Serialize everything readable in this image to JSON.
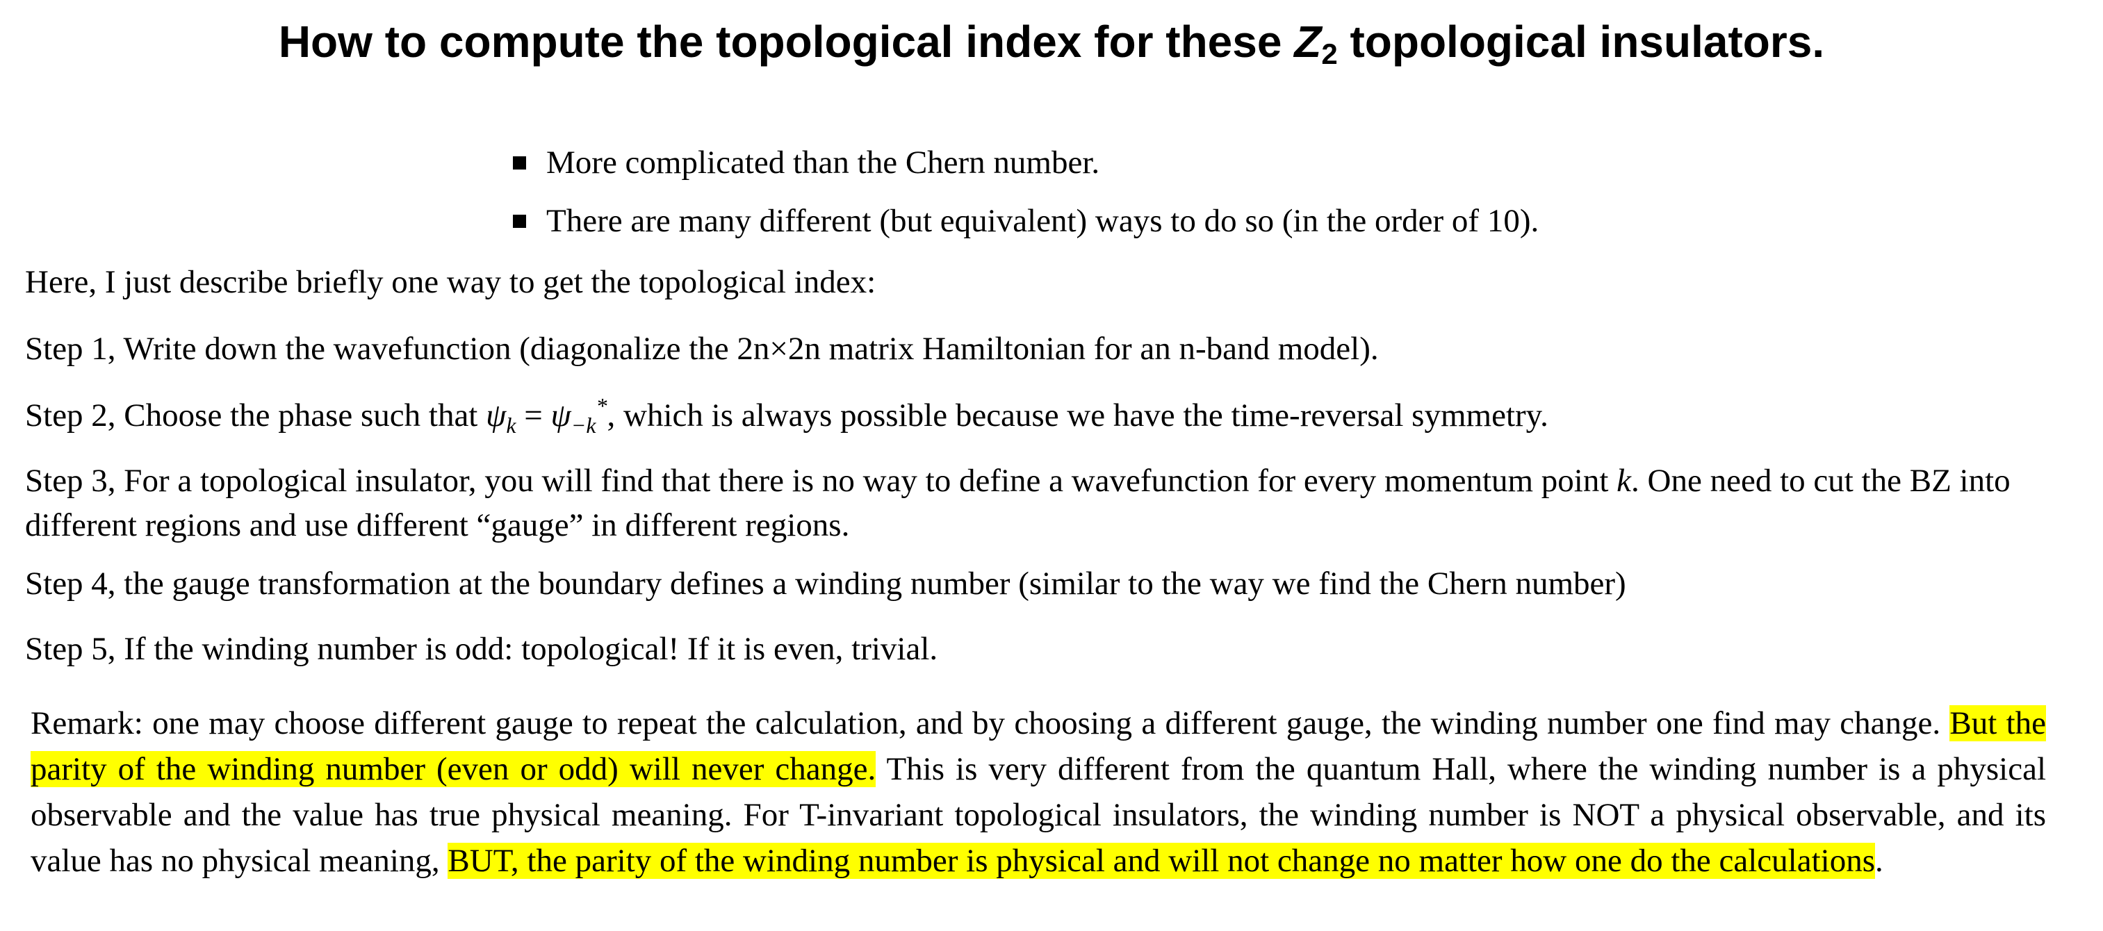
{
  "title": {
    "prefix": "How to compute the topological index for these ",
    "symbol": "Z",
    "subscript": "2",
    "suffix": " topological insulators."
  },
  "bullets": [
    "More complicated than the Chern number.",
    "There are many different (but equivalent) ways to do so (in the order of 10)."
  ],
  "intro": "Here, I just  describe briefly one way to get the topological index:",
  "steps": {
    "step1": "Step 1, Write down the wavefunction (diagonalize the 2n×2n matrix Hamiltonian for an n-band model).",
    "step2": {
      "before": "Step 2, Choose the phase such that ",
      "psi": "ψ",
      "sub_k": "k",
      "equals": " = ",
      "sub_minus_k": "−k",
      "star": "*",
      "after": ", which is always possible because we have the time-reversal symmetry."
    },
    "step3": {
      "before": "Step 3, For a topological insulator, you will find that there is no way to define a wavefunction for every momentum point ",
      "k": "k",
      "after": ". One need to cut the BZ into different regions and use different “gauge” in different regions."
    },
    "step4": "Step 4, the gauge transformation at the boundary defines a winding number (similar to the way we find the Chern number)",
    "step5": "Step 5, If the winding number is odd: topological! If it is even, trivial."
  },
  "remark": {
    "part1": "Remark: one may choose different gauge to repeat the calculation, and by choosing a different gauge, the winding number one find may change. ",
    "highlight1": "But the parity of the winding number (even or odd) will never change.",
    "part2": " This is very different from the quantum Hall, where the winding number is a physical observable and the value has true physical meaning. For T-invariant topological insulators, the winding number is NOT a physical observable, and its value has no physical meaning, ",
    "highlight2": "BUT, the parity of the winding number is physical and will not change no matter how one do the calculations",
    "end": "."
  },
  "colors": {
    "highlight": "#ffff00",
    "text": "#000000"
  }
}
